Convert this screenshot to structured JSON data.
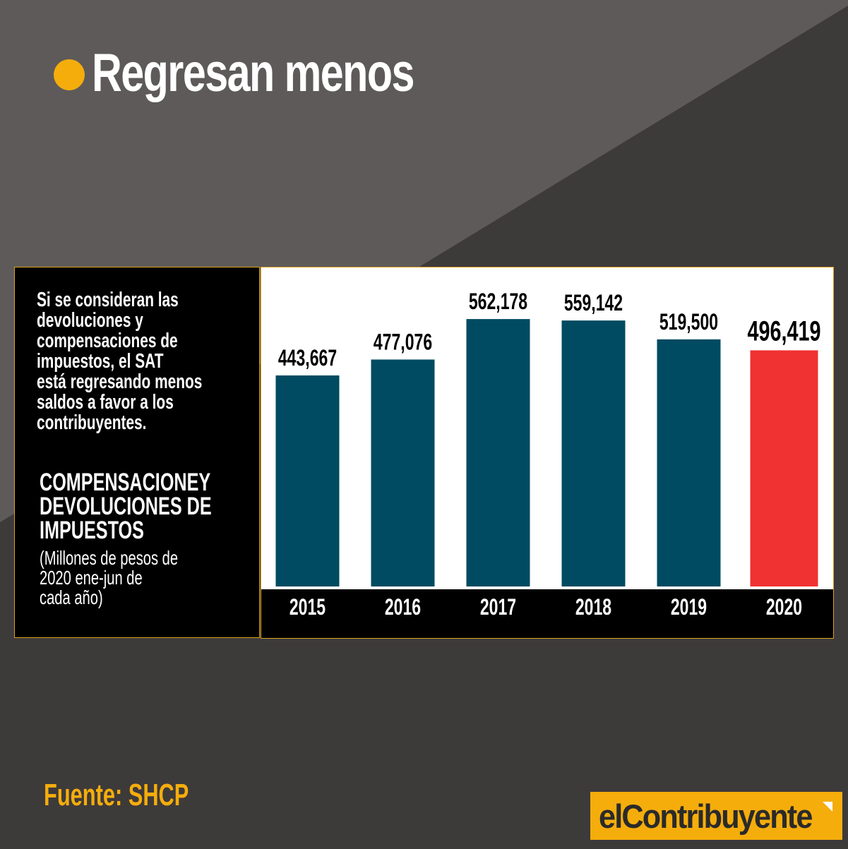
{
  "title": "Regresan menos",
  "description_lines": [
    "Si se consideran las",
    "devoluciones y",
    "compensaciones de",
    "impuestos, el SAT",
    "está regresando menos",
    "saldos a favor a los",
    "contribuyentes."
  ],
  "subtitle_lines": [
    "COMPENSACIONEY",
    "DEVOLUCIONES DE",
    "IMPUESTOS"
  ],
  "units_lines": [
    "(Millones de pesos de",
    "2020 ene-jun de",
    "cada año)"
  ],
  "source": "Fuente: SHCP",
  "brand": "elContribuyente",
  "colors": {
    "bar": "#004b61",
    "highlight": "#f03232",
    "accent": "#f5ad0c",
    "background_dark": "#3d3a3a",
    "background_light": "#5d5a59"
  },
  "chart_data": {
    "type": "bar",
    "title": "",
    "xlabel": "",
    "ylabel": "",
    "categories": [
      "2015",
      "2016",
      "2017",
      "2018",
      "2019",
      "2020"
    ],
    "values": [
      443667,
      477076,
      562178,
      559142,
      519500,
      496419
    ],
    "value_labels": [
      "443,667",
      "477,076",
      "562,178",
      "559,142",
      "519,500",
      "496,419"
    ],
    "highlight_index": 5,
    "grid": false,
    "legend": "none"
  }
}
